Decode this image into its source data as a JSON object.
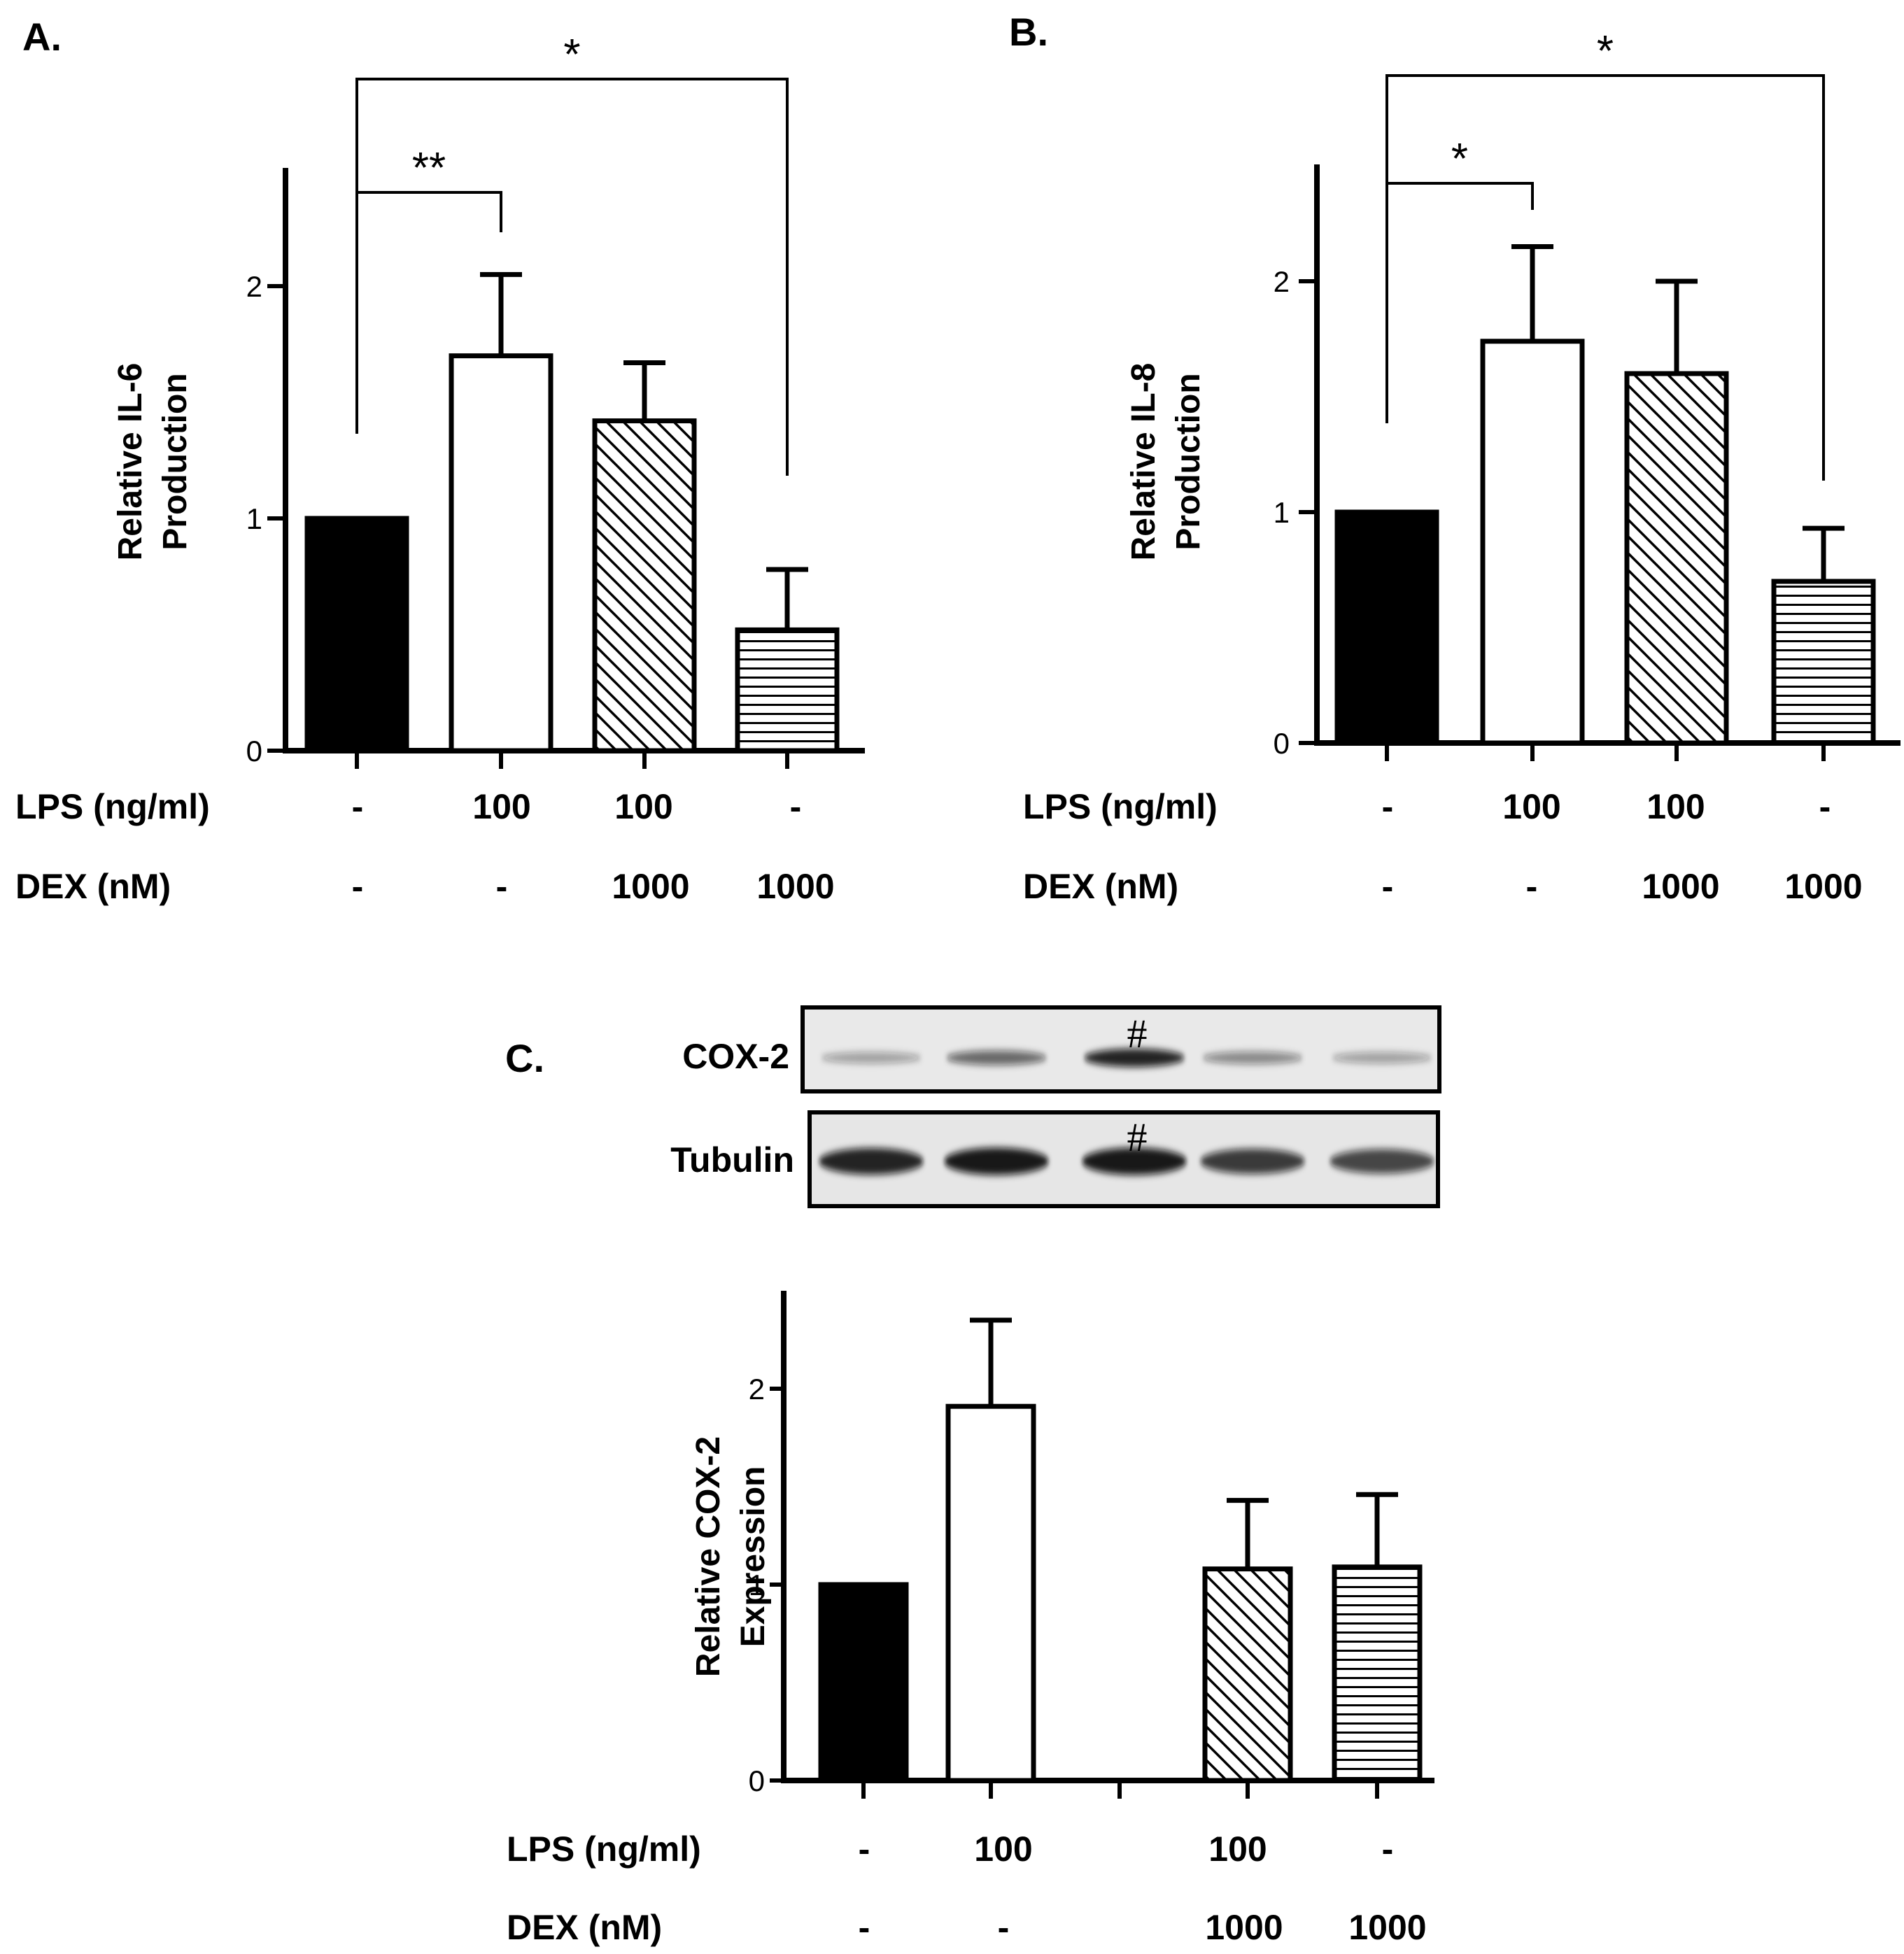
{
  "colors": {
    "ink": "#000000",
    "background": "#ffffff",
    "blot_background": "#e9e9e9",
    "band": "#111111"
  },
  "panel_a": {
    "label": "A.",
    "ylabel_line1": "Relative IL-6",
    "ylabel_line2": "Production",
    "significance": [
      "**",
      "*"
    ]
  },
  "panel_b": {
    "label": "B.",
    "ylabel_line1": "Relative IL-8",
    "ylabel_line2": "Production",
    "significance": [
      "*",
      "*"
    ]
  },
  "panel_c": {
    "label": "C.",
    "ylabel_line1": "Relative COX-2",
    "ylabel_line2": "Expression",
    "blot": {
      "rows": [
        "COX-2",
        "Tubulin"
      ],
      "marker": "#",
      "lane_intensity_cox2": [
        0.35,
        0.6,
        0.9,
        0.45,
        0.35
      ],
      "lane_intensity_tubulin": [
        0.9,
        0.95,
        0.95,
        0.8,
        0.75
      ]
    }
  },
  "conditions": {
    "lps_label": "LPS (ng/ml)",
    "dex_label": "DEX (nM)",
    "lps": [
      "-",
      "100",
      "100",
      "-"
    ],
    "dex": [
      "-",
      "-",
      "1000",
      "1000"
    ],
    "c_lps": [
      "-",
      "100",
      "100",
      "-"
    ],
    "c_dex": [
      "-",
      "-",
      "1000",
      "1000"
    ]
  },
  "chart_data": [
    {
      "panel": "A",
      "type": "bar",
      "categories": [
        "LPS - / DEX -",
        "LPS 100 / DEX -",
        "LPS 100 / DEX 1000",
        "LPS - / DEX 1000"
      ],
      "values": [
        1.0,
        1.7,
        1.42,
        0.52
      ],
      "errors": [
        0,
        0.35,
        0.25,
        0.26
      ],
      "fills": [
        "solid",
        "open",
        "diagonal",
        "horizontal"
      ],
      "yticks": [
        0,
        1,
        2
      ],
      "ylim": [
        0,
        2.5
      ],
      "significance": [
        {
          "pair": [
            0,
            1
          ],
          "text": "**"
        },
        {
          "pair": [
            0,
            3
          ],
          "text": "*"
        }
      ]
    },
    {
      "panel": "B",
      "type": "bar",
      "categories": [
        "LPS - / DEX -",
        "LPS 100 / DEX -",
        "LPS 100 / DEX 1000",
        "LPS - / DEX 1000"
      ],
      "values": [
        1.0,
        1.74,
        1.6,
        0.7
      ],
      "errors": [
        0,
        0.41,
        0.4,
        0.23
      ],
      "fills": [
        "solid",
        "open",
        "diagonal",
        "horizontal"
      ],
      "yticks": [
        0,
        1,
        2
      ],
      "ylim": [
        0,
        2.5
      ],
      "significance": [
        {
          "pair": [
            0,
            1
          ],
          "text": "*"
        },
        {
          "pair": [
            0,
            3
          ],
          "text": "*"
        }
      ]
    },
    {
      "panel": "C",
      "type": "bar",
      "categories": [
        "LPS - / DEX -",
        "LPS 100 / DEX -",
        "",
        "LPS 100 / DEX 1000",
        "LPS - / DEX 1000"
      ],
      "values": [
        1.0,
        1.91,
        null,
        1.08,
        1.09
      ],
      "errors": [
        0,
        0.44,
        null,
        0.35,
        0.37
      ],
      "fills": [
        "solid",
        "open",
        "none",
        "diagonal",
        "horizontal"
      ],
      "yticks": [
        0,
        1,
        2
      ],
      "ylim": [
        0,
        2.5
      ]
    }
  ]
}
